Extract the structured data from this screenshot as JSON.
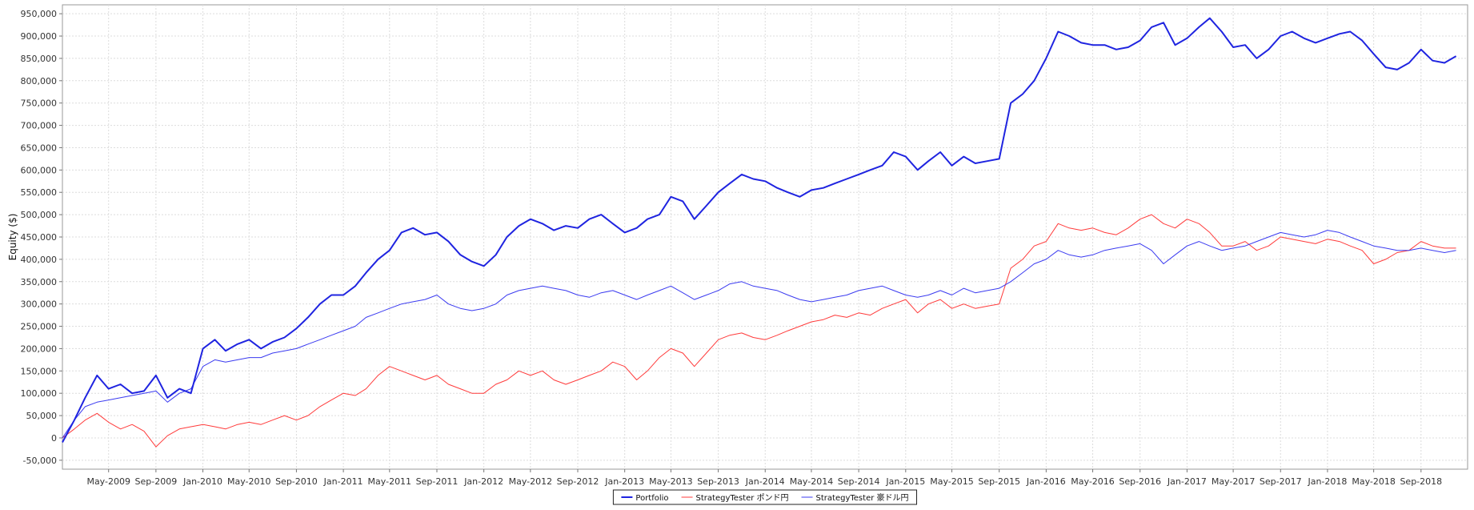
{
  "chart_data": {
    "type": "line",
    "title": "",
    "xlabel": "",
    "ylabel": "Equity ($)",
    "xlim": [
      "2009-01-01",
      "2018-12-31"
    ],
    "ylim": [
      -70000,
      970000
    ],
    "yticks": [
      -50000,
      0,
      50000,
      100000,
      150000,
      200000,
      250000,
      300000,
      350000,
      400000,
      450000,
      500000,
      550000,
      600000,
      650000,
      700000,
      750000,
      800000,
      850000,
      900000,
      950000
    ],
    "ytick_labels": [
      "-50,000",
      "0",
      "50,000",
      "100,000",
      "150,000",
      "200,000",
      "250,000",
      "300,000",
      "350,000",
      "400,000",
      "450,000",
      "500,000",
      "550,000",
      "600,000",
      "650,000",
      "700,000",
      "750,000",
      "800,000",
      "850,000",
      "900,000",
      "950,000"
    ],
    "xticks": [
      "2009-05-01",
      "2009-09-01",
      "2010-01-01",
      "2010-05-01",
      "2010-09-01",
      "2011-01-01",
      "2011-05-01",
      "2011-09-01",
      "2012-01-01",
      "2012-05-01",
      "2012-09-01",
      "2013-01-01",
      "2013-05-01",
      "2013-09-01",
      "2014-01-01",
      "2014-05-01",
      "2014-09-01",
      "2015-01-01",
      "2015-05-01",
      "2015-09-01",
      "2016-01-01",
      "2016-05-01",
      "2016-09-01",
      "2017-01-01",
      "2017-05-01",
      "2017-09-01",
      "2018-01-01",
      "2018-05-01",
      "2018-09-01"
    ],
    "xtick_labels": [
      "May-2009",
      "Sep-2009",
      "Jan-2010",
      "May-2010",
      "Sep-2010",
      "Jan-2011",
      "May-2011",
      "Sep-2011",
      "Jan-2012",
      "May-2012",
      "Sep-2012",
      "Jan-2013",
      "May-2013",
      "Sep-2013",
      "Jan-2014",
      "May-2014",
      "Sep-2014",
      "Jan-2015",
      "May-2015",
      "Sep-2015",
      "Jan-2016",
      "May-2016",
      "Sep-2016",
      "Jan-2017",
      "May-2017",
      "Sep-2017",
      "Jan-2018",
      "May-2018",
      "Sep-2018"
    ],
    "grid": true,
    "legend_position": "bottom-center",
    "x": [
      "2009-01-01",
      "2009-02-01",
      "2009-03-01",
      "2009-04-01",
      "2009-05-01",
      "2009-06-01",
      "2009-07-01",
      "2009-08-01",
      "2009-09-01",
      "2009-10-01",
      "2009-11-01",
      "2009-12-01",
      "2010-01-01",
      "2010-02-01",
      "2010-03-01",
      "2010-04-01",
      "2010-05-01",
      "2010-06-01",
      "2010-07-01",
      "2010-08-01",
      "2010-09-01",
      "2010-10-01",
      "2010-11-01",
      "2010-12-01",
      "2011-01-01",
      "2011-02-01",
      "2011-03-01",
      "2011-04-01",
      "2011-05-01",
      "2011-06-01",
      "2011-07-01",
      "2011-08-01",
      "2011-09-01",
      "2011-10-01",
      "2011-11-01",
      "2011-12-01",
      "2012-01-01",
      "2012-02-01",
      "2012-03-01",
      "2012-04-01",
      "2012-05-01",
      "2012-06-01",
      "2012-07-01",
      "2012-08-01",
      "2012-09-01",
      "2012-10-01",
      "2012-11-01",
      "2012-12-01",
      "2013-01-01",
      "2013-02-01",
      "2013-03-01",
      "2013-04-01",
      "2013-05-01",
      "2013-06-01",
      "2013-07-01",
      "2013-08-01",
      "2013-09-01",
      "2013-10-01",
      "2013-11-01",
      "2013-12-01",
      "2014-01-01",
      "2014-02-01",
      "2014-03-01",
      "2014-04-01",
      "2014-05-01",
      "2014-06-01",
      "2014-07-01",
      "2014-08-01",
      "2014-09-01",
      "2014-10-01",
      "2014-11-01",
      "2014-12-01",
      "2015-01-01",
      "2015-02-01",
      "2015-03-01",
      "2015-04-01",
      "2015-05-01",
      "2015-06-01",
      "2015-07-01",
      "2015-08-01",
      "2015-09-01",
      "2015-10-01",
      "2015-11-01",
      "2015-12-01",
      "2016-01-01",
      "2016-02-01",
      "2016-03-01",
      "2016-04-01",
      "2016-05-01",
      "2016-06-01",
      "2016-07-01",
      "2016-08-01",
      "2016-09-01",
      "2016-10-01",
      "2016-11-01",
      "2016-12-01",
      "2017-01-01",
      "2017-02-01",
      "2017-03-01",
      "2017-04-01",
      "2017-05-01",
      "2017-06-01",
      "2017-07-01",
      "2017-08-01",
      "2017-09-01",
      "2017-10-01",
      "2017-11-01",
      "2017-12-01",
      "2018-01-01",
      "2018-02-01",
      "2018-03-01",
      "2018-04-01",
      "2018-05-01",
      "2018-06-01",
      "2018-07-01",
      "2018-08-01",
      "2018-09-01",
      "2018-10-01",
      "2018-11-01",
      "2018-12-01"
    ],
    "series": [
      {
        "name": "Portfolio",
        "color": "#1f24e0",
        "width": 2,
        "values": [
          -10000,
          40000,
          90000,
          140000,
          110000,
          120000,
          100000,
          105000,
          140000,
          90000,
          110000,
          100000,
          200000,
          220000,
          195000,
          210000,
          220000,
          200000,
          215000,
          225000,
          245000,
          270000,
          300000,
          320000,
          320000,
          340000,
          370000,
          400000,
          420000,
          460000,
          470000,
          455000,
          460000,
          440000,
          410000,
          395000,
          385000,
          410000,
          450000,
          475000,
          490000,
          480000,
          465000,
          475000,
          470000,
          490000,
          500000,
          480000,
          460000,
          470000,
          490000,
          500000,
          540000,
          530000,
          490000,
          520000,
          550000,
          570000,
          590000,
          580000,
          575000,
          560000,
          550000,
          540000,
          555000,
          560000,
          570000,
          580000,
          590000,
          600000,
          610000,
          640000,
          630000,
          600000,
          620000,
          640000,
          610000,
          630000,
          615000,
          620000,
          625000,
          750000,
          770000,
          800000,
          850000,
          910000,
          900000,
          885000,
          880000,
          880000,
          870000,
          875000,
          890000,
          920000,
          930000,
          880000,
          895000,
          920000,
          940000,
          910000,
          875000,
          880000,
          850000,
          870000,
          900000,
          910000,
          895000,
          885000,
          895000,
          905000,
          910000,
          890000,
          860000,
          830000,
          825000,
          840000,
          870000,
          845000,
          840000,
          855000
        ]
      },
      {
        "name": "StrategyTester ポンド円",
        "color": "#ff3b3b",
        "width": 1,
        "values": [
          0,
          20000,
          40000,
          55000,
          35000,
          20000,
          30000,
          15000,
          -20000,
          5000,
          20000,
          25000,
          30000,
          25000,
          20000,
          30000,
          35000,
          30000,
          40000,
          50000,
          40000,
          50000,
          70000,
          85000,
          100000,
          95000,
          110000,
          140000,
          160000,
          150000,
          140000,
          130000,
          140000,
          120000,
          110000,
          100000,
          100000,
          120000,
          130000,
          150000,
          140000,
          150000,
          130000,
          120000,
          130000,
          140000,
          150000,
          170000,
          160000,
          130000,
          150000,
          180000,
          200000,
          190000,
          160000,
          190000,
          220000,
          230000,
          235000,
          225000,
          220000,
          230000,
          240000,
          250000,
          260000,
          265000,
          275000,
          270000,
          280000,
          275000,
          290000,
          300000,
          310000,
          280000,
          300000,
          310000,
          290000,
          300000,
          290000,
          295000,
          300000,
          380000,
          400000,
          430000,
          440000,
          480000,
          470000,
          465000,
          470000,
          460000,
          455000,
          470000,
          490000,
          500000,
          480000,
          470000,
          490000,
          480000,
          460000,
          430000,
          430000,
          440000,
          420000,
          430000,
          450000,
          445000,
          440000,
          435000,
          445000,
          440000,
          430000,
          420000,
          390000,
          400000,
          415000,
          420000,
          440000,
          430000,
          425000,
          425000
        ]
      },
      {
        "name": "StrategyTester 豪ドル円",
        "color": "#3b3bf0",
        "width": 1,
        "values": [
          0,
          40000,
          70000,
          80000,
          85000,
          90000,
          95000,
          100000,
          105000,
          80000,
          100000,
          110000,
          160000,
          175000,
          170000,
          175000,
          180000,
          180000,
          190000,
          195000,
          200000,
          210000,
          220000,
          230000,
          240000,
          250000,
          270000,
          280000,
          290000,
          300000,
          305000,
          310000,
          320000,
          300000,
          290000,
          285000,
          290000,
          300000,
          320000,
          330000,
          335000,
          340000,
          335000,
          330000,
          320000,
          315000,
          325000,
          330000,
          320000,
          310000,
          320000,
          330000,
          340000,
          325000,
          310000,
          320000,
          330000,
          345000,
          350000,
          340000,
          335000,
          330000,
          320000,
          310000,
          305000,
          310000,
          315000,
          320000,
          330000,
          335000,
          340000,
          330000,
          320000,
          315000,
          320000,
          330000,
          320000,
          335000,
          325000,
          330000,
          335000,
          350000,
          370000,
          390000,
          400000,
          420000,
          410000,
          405000,
          410000,
          420000,
          425000,
          430000,
          435000,
          420000,
          390000,
          410000,
          430000,
          440000,
          430000,
          420000,
          425000,
          430000,
          440000,
          450000,
          460000,
          455000,
          450000,
          455000,
          465000,
          460000,
          450000,
          440000,
          430000,
          425000,
          420000,
          420000,
          425000,
          420000,
          415000,
          420000
        ]
      }
    ]
  }
}
